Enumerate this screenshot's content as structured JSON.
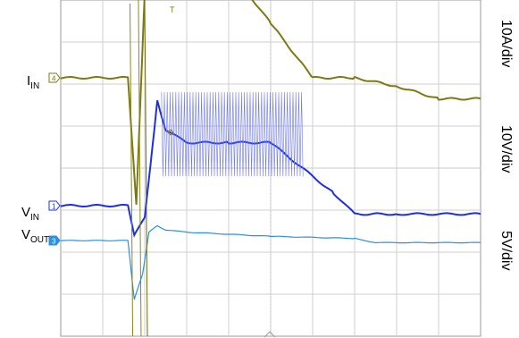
{
  "chart_data": {
    "type": "line",
    "title": "",
    "xlabel": "",
    "ylabel": "",
    "grid": true,
    "grid_divisions": {
      "x": 10,
      "y": 8
    },
    "trigger_marker": "T",
    "channels": [
      {
        "id": "iin",
        "label_main": "I",
        "label_sub": "IN",
        "marker": "4",
        "scale": "10A/div",
        "color": "#7d7a12"
      },
      {
        "id": "vin",
        "label_main": "V",
        "label_sub": "IN",
        "marker": "1",
        "scale": "10V/div",
        "color": "#1e2fe0"
      },
      {
        "id": "vout",
        "label_main": "V",
        "label_sub": "OUT",
        "marker": "3",
        "scale": "5V/div",
        "color": "#2c8fe0"
      }
    ],
    "series": [
      {
        "channel": "iin",
        "x": [
          0,
          1.6,
          1.8,
          2.0,
          2.3,
          2.5,
          3.0,
          4.0,
          5.0,
          6.0,
          7.0,
          8.0,
          9.0,
          10.0
        ],
        "values": [
          0,
          0,
          -3.0,
          2.0,
          6.5,
          5.5,
          4.2,
          2.6,
          1.3,
          0,
          0,
          -0.2,
          -0.5,
          -0.5
        ]
      },
      {
        "channel": "vin",
        "x": [
          0,
          1.6,
          1.75,
          2.0,
          2.3,
          2.5,
          3.0,
          4.0,
          5.0,
          6.5,
          7.0,
          8.0,
          10.0
        ],
        "values": [
          0,
          0,
          -0.7,
          -0.3,
          2.5,
          1.8,
          1.5,
          1.5,
          1.5,
          0.3,
          -0.2,
          -0.2,
          -0.2
        ]
      },
      {
        "channel": "vout",
        "x": [
          0,
          1.6,
          1.75,
          1.95,
          2.1,
          2.3,
          2.5,
          3.0,
          5.0,
          7.0,
          7.5,
          8.0,
          10.0
        ],
        "values": [
          0,
          0,
          -1.4,
          -0.8,
          0.2,
          0.35,
          0.25,
          0.2,
          0.1,
          0.05,
          -0.05,
          -0.05,
          -0.05
        ]
      }
    ],
    "vin_switching_band": {
      "x": [
        2.4,
        5.8
      ],
      "values": [
        0.7,
        2.7
      ]
    }
  }
}
